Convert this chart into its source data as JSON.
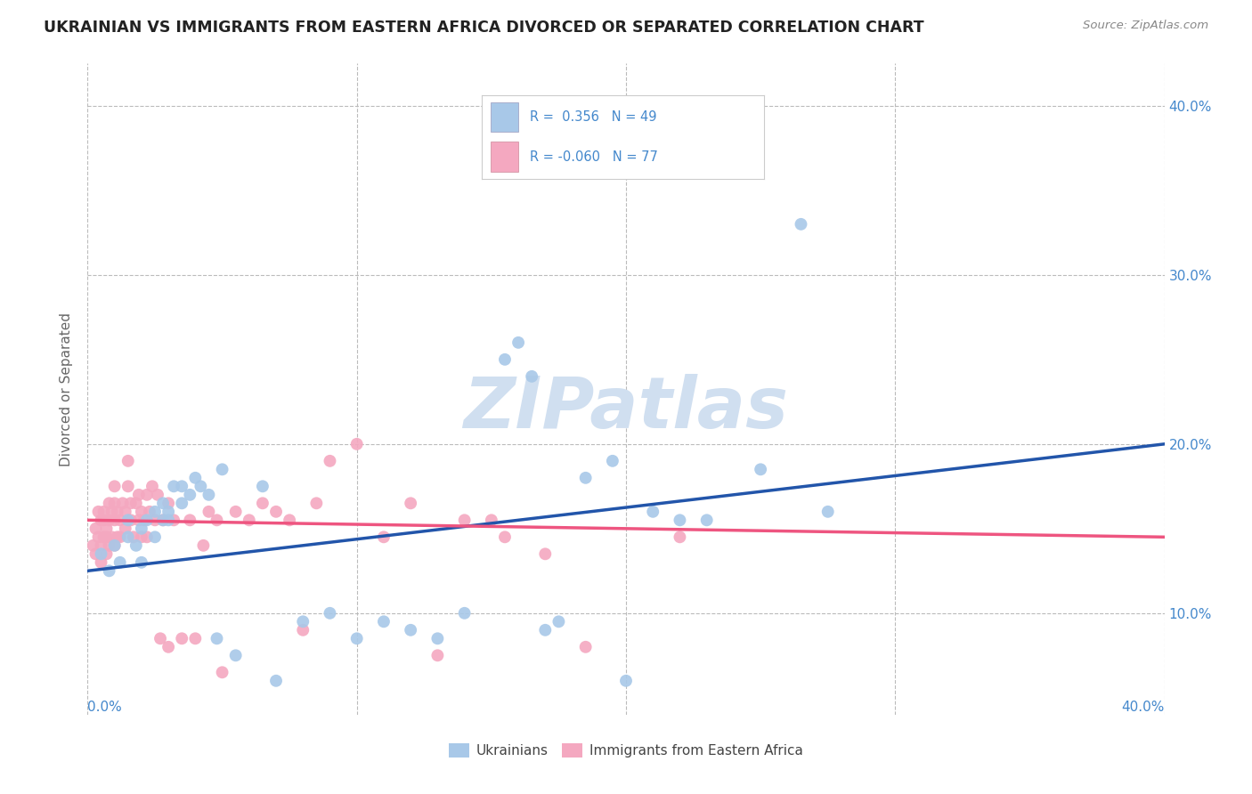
{
  "title": "UKRAINIAN VS IMMIGRANTS FROM EASTERN AFRICA DIVORCED OR SEPARATED CORRELATION CHART",
  "source_text": "Source: ZipAtlas.com",
  "ylabel": "Divorced or Separated",
  "legend_label1": "Ukrainians",
  "legend_label2": "Immigrants from Eastern Africa",
  "R1": 0.356,
  "N1": 49,
  "R2": -0.06,
  "N2": 77,
  "x_min": 0.0,
  "x_max": 0.4,
  "y_min": 0.04,
  "y_max": 0.425,
  "color_blue": "#A8C8E8",
  "color_pink": "#F4A8C0",
  "line_color_blue": "#2255AA",
  "line_color_pink": "#EE5580",
  "watermark_color": "#D0DFF0",
  "background_color": "#FFFFFF",
  "grid_color": "#BBBBBB",
  "title_color": "#222222",
  "axis_label_color": "#4488CC",
  "legend_text_color": "#4488CC",
  "blue_scatter": [
    [
      0.005,
      0.135
    ],
    [
      0.008,
      0.125
    ],
    [
      0.01,
      0.14
    ],
    [
      0.012,
      0.13
    ],
    [
      0.015,
      0.155
    ],
    [
      0.015,
      0.145
    ],
    [
      0.018,
      0.14
    ],
    [
      0.02,
      0.13
    ],
    [
      0.02,
      0.15
    ],
    [
      0.022,
      0.155
    ],
    [
      0.025,
      0.145
    ],
    [
      0.025,
      0.16
    ],
    [
      0.028,
      0.155
    ],
    [
      0.028,
      0.165
    ],
    [
      0.03,
      0.16
    ],
    [
      0.03,
      0.155
    ],
    [
      0.032,
      0.175
    ],
    [
      0.035,
      0.165
    ],
    [
      0.035,
      0.175
    ],
    [
      0.038,
      0.17
    ],
    [
      0.04,
      0.18
    ],
    [
      0.042,
      0.175
    ],
    [
      0.045,
      0.17
    ],
    [
      0.048,
      0.085
    ],
    [
      0.05,
      0.185
    ],
    [
      0.055,
      0.075
    ],
    [
      0.065,
      0.175
    ],
    [
      0.07,
      0.06
    ],
    [
      0.08,
      0.095
    ],
    [
      0.09,
      0.1
    ],
    [
      0.1,
      0.085
    ],
    [
      0.11,
      0.095
    ],
    [
      0.12,
      0.09
    ],
    [
      0.13,
      0.085
    ],
    [
      0.14,
      0.1
    ],
    [
      0.155,
      0.25
    ],
    [
      0.16,
      0.26
    ],
    [
      0.165,
      0.24
    ],
    [
      0.17,
      0.09
    ],
    [
      0.175,
      0.095
    ],
    [
      0.185,
      0.18
    ],
    [
      0.195,
      0.19
    ],
    [
      0.2,
      0.06
    ],
    [
      0.21,
      0.16
    ],
    [
      0.22,
      0.155
    ],
    [
      0.23,
      0.155
    ],
    [
      0.25,
      0.185
    ],
    [
      0.265,
      0.33
    ],
    [
      0.275,
      0.16
    ]
  ],
  "pink_scatter": [
    [
      0.002,
      0.14
    ],
    [
      0.003,
      0.135
    ],
    [
      0.003,
      0.15
    ],
    [
      0.004,
      0.16
    ],
    [
      0.004,
      0.145
    ],
    [
      0.005,
      0.13
    ],
    [
      0.005,
      0.155
    ],
    [
      0.005,
      0.14
    ],
    [
      0.006,
      0.155
    ],
    [
      0.006,
      0.145
    ],
    [
      0.006,
      0.16
    ],
    [
      0.007,
      0.135
    ],
    [
      0.007,
      0.145
    ],
    [
      0.007,
      0.15
    ],
    [
      0.008,
      0.165
    ],
    [
      0.008,
      0.14
    ],
    [
      0.008,
      0.155
    ],
    [
      0.009,
      0.145
    ],
    [
      0.009,
      0.16
    ],
    [
      0.01,
      0.14
    ],
    [
      0.01,
      0.155
    ],
    [
      0.01,
      0.165
    ],
    [
      0.01,
      0.175
    ],
    [
      0.011,
      0.145
    ],
    [
      0.011,
      0.16
    ],
    [
      0.012,
      0.155
    ],
    [
      0.012,
      0.145
    ],
    [
      0.013,
      0.165
    ],
    [
      0.014,
      0.15
    ],
    [
      0.014,
      0.16
    ],
    [
      0.015,
      0.175
    ],
    [
      0.015,
      0.19
    ],
    [
      0.016,
      0.155
    ],
    [
      0.016,
      0.165
    ],
    [
      0.017,
      0.145
    ],
    [
      0.018,
      0.165
    ],
    [
      0.019,
      0.155
    ],
    [
      0.019,
      0.17
    ],
    [
      0.02,
      0.145
    ],
    [
      0.02,
      0.16
    ],
    [
      0.021,
      0.155
    ],
    [
      0.022,
      0.17
    ],
    [
      0.022,
      0.145
    ],
    [
      0.023,
      0.16
    ],
    [
      0.024,
      0.175
    ],
    [
      0.025,
      0.155
    ],
    [
      0.026,
      0.17
    ],
    [
      0.027,
      0.085
    ],
    [
      0.028,
      0.155
    ],
    [
      0.03,
      0.165
    ],
    [
      0.03,
      0.08
    ],
    [
      0.032,
      0.155
    ],
    [
      0.035,
      0.085
    ],
    [
      0.038,
      0.155
    ],
    [
      0.04,
      0.085
    ],
    [
      0.043,
      0.14
    ],
    [
      0.045,
      0.16
    ],
    [
      0.048,
      0.155
    ],
    [
      0.05,
      0.065
    ],
    [
      0.055,
      0.16
    ],
    [
      0.06,
      0.155
    ],
    [
      0.065,
      0.165
    ],
    [
      0.07,
      0.16
    ],
    [
      0.075,
      0.155
    ],
    [
      0.08,
      0.09
    ],
    [
      0.085,
      0.165
    ],
    [
      0.09,
      0.19
    ],
    [
      0.1,
      0.2
    ],
    [
      0.11,
      0.145
    ],
    [
      0.12,
      0.165
    ],
    [
      0.13,
      0.075
    ],
    [
      0.14,
      0.155
    ],
    [
      0.15,
      0.155
    ],
    [
      0.155,
      0.145
    ],
    [
      0.17,
      0.135
    ],
    [
      0.185,
      0.08
    ],
    [
      0.22,
      0.145
    ]
  ],
  "xtick_vals": [
    0.0,
    0.1,
    0.2,
    0.3,
    0.4
  ],
  "xtick_labels_bottom": [
    "0.0%",
    "",
    "",
    "",
    "40.0%"
  ],
  "ytick_vals": [
    0.1,
    0.2,
    0.3,
    0.4
  ],
  "ytick_labels": [
    "10.0%",
    "20.0%",
    "30.0%",
    "40.0%"
  ],
  "blue_line": [
    [
      0.0,
      0.125
    ],
    [
      0.4,
      0.2
    ]
  ],
  "pink_line": [
    [
      0.0,
      0.155
    ],
    [
      0.4,
      0.145
    ]
  ]
}
